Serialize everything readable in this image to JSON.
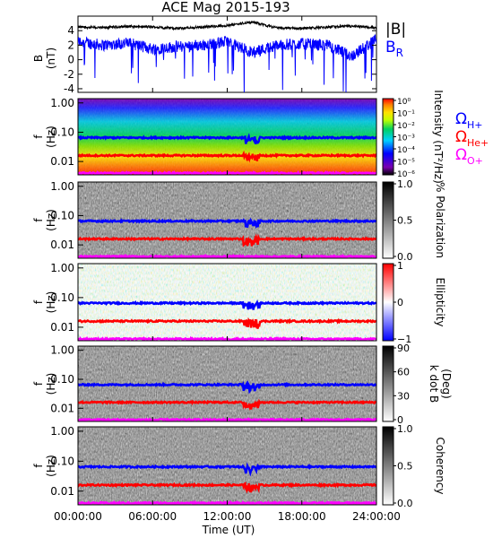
{
  "title": "ACE Mag 2015-193",
  "xlabel": "Time (UT)",
  "x_tick_labels": [
    "00:00:00",
    "06:00:00",
    "12:00:00",
    "18:00:00",
    "24:00:00"
  ],
  "colors": {
    "B_total": "#000000",
    "B_R": "#0000ff",
    "H_plus": "#0000ff",
    "He_plus": "#ff0000",
    "O_plus": "#ff00ff"
  },
  "legend": {
    "B_total": "|B|",
    "B_R": "B",
    "B_R_sub": "R",
    "H_plus": "Ω",
    "H_plus_sub": "H+",
    "He_plus": "Ω",
    "He_plus_sub": "He+",
    "O_plus": "Ω",
    "O_plus_sub": "O+"
  },
  "chart_data": [
    {
      "type": "line",
      "panel": "magnetic field",
      "ylabel": "B",
      "yunit": "(nT)",
      "ylim": [
        -4.5,
        6
      ],
      "yticks": [
        "4",
        "2",
        "0",
        "-2",
        "-4"
      ],
      "xlim_hours": [
        0,
        24
      ],
      "series": [
        {
          "name": "|B|",
          "x_hours": [
            0,
            2,
            4,
            6,
            8,
            10,
            12,
            14,
            16,
            18,
            20,
            22,
            24
          ],
          "values": [
            4.5,
            4.4,
            4.6,
            4.5,
            4.3,
            4.5,
            4.7,
            5.2,
            4.4,
            4.3,
            4.5,
            4.6,
            4.4
          ]
        },
        {
          "name": "B_R",
          "x_hours": [
            0,
            2,
            4,
            6,
            8,
            10,
            12,
            14,
            16,
            18,
            20,
            22,
            24
          ],
          "values": [
            2.5,
            2.0,
            2.3,
            1.5,
            1.8,
            2.0,
            2.5,
            1.0,
            2.0,
            2.2,
            2.0,
            0.5,
            2.8
          ]
        }
      ]
    },
    {
      "type": "heatmap",
      "panel": "spectrogram",
      "ylabel": "f",
      "yunit": "(Hz)",
      "yticks": [
        "1.00",
        "0.10",
        "0.01"
      ],
      "colorbar_label": "Intensity (nT²/Hz)",
      "colorbar_ticks": [
        "10⁰",
        "10⁻¹",
        "10⁻²",
        "10⁻³",
        "10⁻⁴",
        "10⁻⁵",
        "10⁻⁶"
      ],
      "lines_hz": {
        "H+": 0.065,
        "He+": 0.016,
        "O+": 0.004
      }
    },
    {
      "type": "heatmap",
      "panel": "polarization",
      "ylabel": "f",
      "yunit": "(Hz)",
      "yticks": [
        "1.00",
        "0.10",
        "0.01"
      ],
      "colorbar_label": "% Polarization",
      "colorbar_ticks": [
        "1.0",
        "0.5",
        "0.0"
      ]
    },
    {
      "type": "heatmap",
      "panel": "ellipticity",
      "ylabel": "f",
      "yunit": "(Hz)",
      "yticks": [
        "1.00",
        "0.10",
        "0.01"
      ],
      "colorbar_label": "Ellipticity",
      "colorbar_ticks": [
        "1",
        "0",
        "−1"
      ]
    },
    {
      "type": "heatmap",
      "panel": "wave normal angle",
      "ylabel": "f",
      "yunit": "(Hz)",
      "yticks": [
        "1.00",
        "0.10",
        "0.01"
      ],
      "colorbar_label": "k dot B",
      "colorbar_label2": "(Deg)",
      "colorbar_ticks": [
        "90",
        "60",
        "30",
        "0"
      ]
    },
    {
      "type": "heatmap",
      "panel": "coherency",
      "ylabel": "f",
      "yunit": "(Hz)",
      "yticks": [
        "1.00",
        "0.10",
        "0.01"
      ],
      "colorbar_label": "Coherency",
      "colorbar_ticks": [
        "1.0",
        "0.5",
        "0.0"
      ]
    }
  ]
}
